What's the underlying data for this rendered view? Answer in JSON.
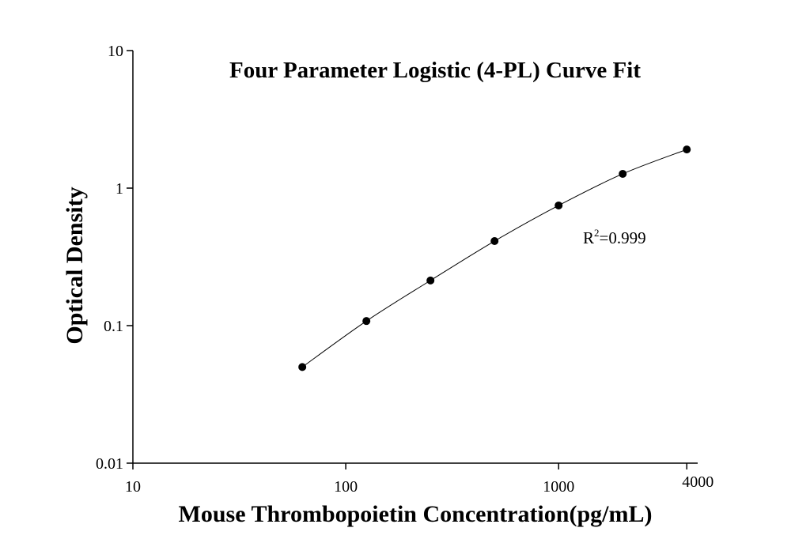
{
  "chart_data": {
    "type": "scatter",
    "title": "Four Parameter Logistic (4-PL) Curve Fit",
    "xlabel": "Mouse Thrombopoietin Concentration(pg/mL)",
    "ylabel": "Optical Density",
    "annotation": [
      "R",
      "2",
      "=0.999"
    ],
    "x": [
      62.5,
      125,
      250,
      500,
      1000,
      2000,
      4000
    ],
    "series": [
      {
        "color": "#000000",
        "values": [
          0.05,
          0.108,
          0.213,
          0.412,
          0.748,
          1.27,
          1.91
        ]
      }
    ],
    "xscale": "log",
    "yscale": "log",
    "xlim": [
      10,
      4500
    ],
    "ylim": [
      0.01,
      10
    ],
    "xticks": [
      10,
      100,
      1000,
      4000
    ],
    "yticks": [
      0.01,
      0.1,
      1,
      10
    ]
  }
}
